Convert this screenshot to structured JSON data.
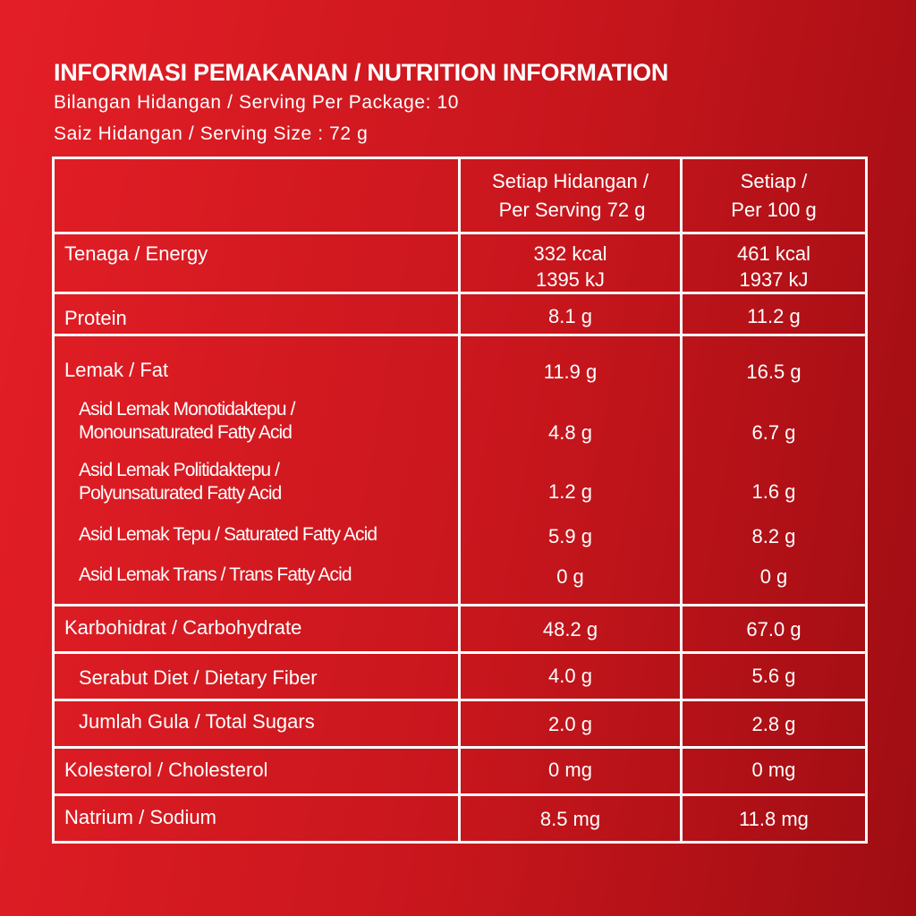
{
  "title": "INFORMASI PEMAKANAN / NUTRITION INFORMATION",
  "servings": "Bilangan Hidangan / Serving Per Package: 10",
  "serving_size": "Saiz Hidangan / Serving Size : 72 g",
  "header": {
    "col2_line1": "Setiap Hidangan /",
    "col2_line2": "Per Serving 72 g",
    "col3_line1": "Setiap /",
    "col3_line2": "Per 100 g"
  },
  "energy": {
    "label": "Tenaga / Energy",
    "per_serving_kcal": "332 kcal",
    "per_serving_kj": "1395 kJ",
    "per_100g_kcal": "461 kcal",
    "per_100g_kj": "1937 kJ"
  },
  "protein": {
    "label": "Protein",
    "per_serving": "8.1 g",
    "per_100g": "11.2 g"
  },
  "fat": {
    "label": "Lemak / Fat",
    "per_serving": "11.9 g",
    "per_100g": "16.5 g",
    "mono": {
      "label_line1": "Asid Lemak Monotidaktepu /",
      "label_line2": "Monounsaturated Fatty Acid",
      "per_serving": "4.8 g",
      "per_100g": "6.7 g"
    },
    "poly": {
      "label_line1": "Asid Lemak Politidaktepu /",
      "label_line2": "Polyunsaturated Fatty Acid",
      "per_serving": "1.2 g",
      "per_100g": "1.6 g"
    },
    "saturated": {
      "label": "Asid Lemak Tepu / Saturated Fatty Acid",
      "per_serving": "5.9 g",
      "per_100g": "8.2 g"
    },
    "trans": {
      "label": "Asid Lemak Trans / Trans Fatty Acid",
      "per_serving": "0 g",
      "per_100g": "0 g"
    }
  },
  "carbohydrate": {
    "label": "Karbohidrat / Carbohydrate",
    "per_serving": "48.2 g",
    "per_100g": "67.0 g"
  },
  "fiber": {
    "label": "Serabut Diet / Dietary Fiber",
    "per_serving": "4.0 g",
    "per_100g": "5.6 g"
  },
  "sugars": {
    "label": "Jumlah Gula / Total Sugars",
    "per_serving": "2.0 g",
    "per_100g": "2.8 g"
  },
  "cholesterol": {
    "label": "Kolesterol / Cholesterol",
    "per_serving": "0 mg",
    "per_100g": "0 mg"
  },
  "sodium": {
    "label": "Natrium / Sodium",
    "per_serving": "8.5 mg",
    "per_100g": "11.8 mg"
  }
}
